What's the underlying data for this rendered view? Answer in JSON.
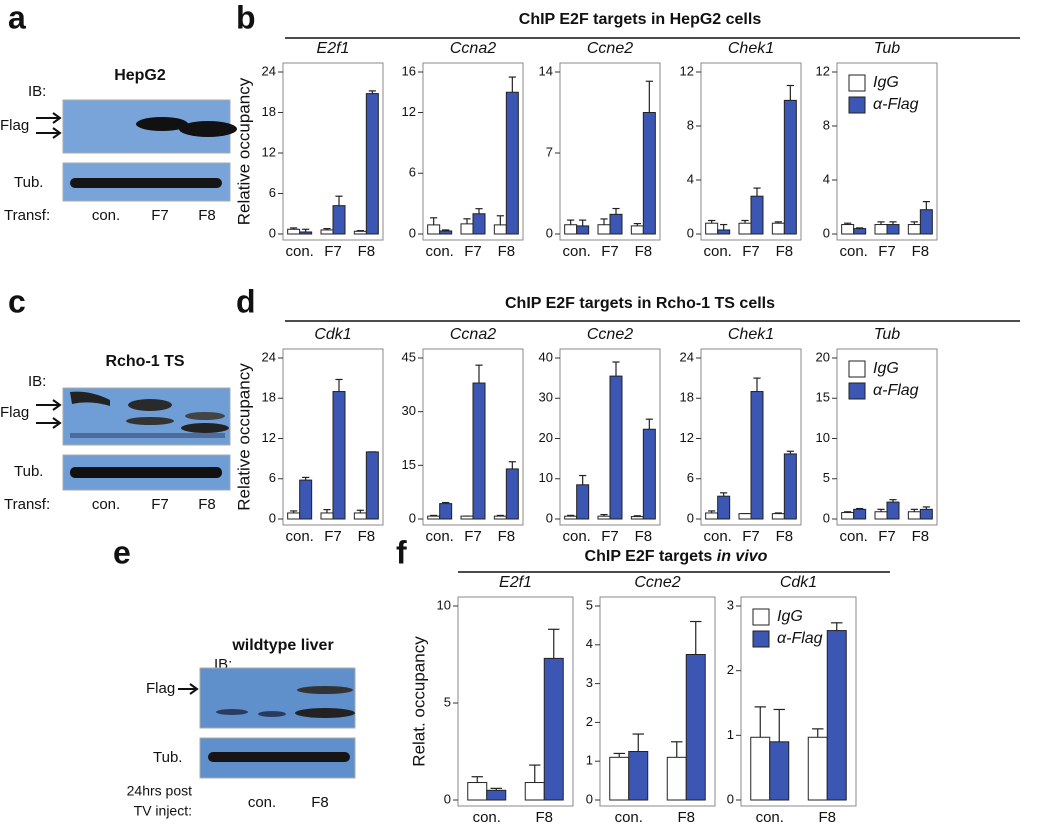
{
  "panel_labels": [
    "a",
    "b",
    "c",
    "d",
    "e",
    "f"
  ],
  "groups": [
    {
      "heading": "ChIP E2F targets in HepG2 cells"
    },
    {
      "heading": "ChIP E2F targets in Rcho-1 TS cells"
    },
    {
      "heading": "ChIP E2F targets",
      "heading_italic": "in vivo"
    }
  ],
  "blots": [
    {
      "title": "HepG2",
      "ib": "IB:",
      "flag": "Flag",
      "tub": "Tub.",
      "transf": [
        "Transf:"
      ],
      "lanes": [
        "con.",
        "F7",
        "F8"
      ]
    },
    {
      "title": "Rcho-1 TS",
      "ib": "IB:",
      "flag": "Flag",
      "tub": "Tub.",
      "transf": [
        "Transf:"
      ],
      "lanes": [
        "con.",
        "F7",
        "F8"
      ]
    },
    {
      "title": "wildtype liver",
      "ib": "IB:",
      "flag": "Flag",
      "tub": "Tub.",
      "transf": [
        "24hrs post",
        "TV inject:"
      ],
      "lanes": [
        "con.",
        "F8"
      ]
    }
  ],
  "chart_data": [
    {
      "type": "bar",
      "title": "E2f1",
      "ylabel": "Relative occupancy",
      "categories": [
        "con.",
        "F7",
        "F8"
      ],
      "ylim": [
        0,
        24
      ],
      "yticks": [
        0,
        6,
        12,
        18,
        24
      ],
      "series": [
        {
          "color": "#ffffff",
          "values": [
            0.7,
            0.6,
            0.4
          ],
          "errors": [
            0.2,
            0.2,
            0.1
          ]
        },
        {
          "color": "#3b56b3",
          "values": [
            0.3,
            4.2,
            20.8
          ],
          "errors": [
            0.4,
            1.4,
            0.4
          ]
        }
      ]
    },
    {
      "type": "bar",
      "title": "Ccna2",
      "categories": [
        "con.",
        "F7",
        "F8"
      ],
      "ylim": [
        0,
        16
      ],
      "yticks": [
        0,
        6,
        12,
        16
      ],
      "series": [
        {
          "color": "#ffffff",
          "values": [
            0.9,
            1.0,
            0.9
          ],
          "errors": [
            0.7,
            0.5,
            0.9
          ]
        },
        {
          "color": "#3b56b3",
          "values": [
            0.3,
            2.0,
            14.0
          ],
          "errors": [
            0.1,
            0.5,
            1.5
          ]
        }
      ]
    },
    {
      "type": "bar",
      "title": "Ccne2",
      "categories": [
        "con.",
        "F7",
        "F8"
      ],
      "ylim": [
        0,
        14
      ],
      "yticks": [
        0,
        7,
        14
      ],
      "series": [
        {
          "color": "#ffffff",
          "values": [
            0.8,
            0.8,
            0.7
          ],
          "errors": [
            0.4,
            0.5,
            0.2
          ]
        },
        {
          "color": "#3b56b3",
          "values": [
            0.7,
            1.7,
            10.5
          ],
          "errors": [
            0.5,
            0.5,
            2.7
          ]
        }
      ]
    },
    {
      "type": "bar",
      "title": "Chek1",
      "categories": [
        "con.",
        "F7",
        "F8"
      ],
      "ylim": [
        0,
        12
      ],
      "yticks": [
        0,
        4,
        8,
        12
      ],
      "series": [
        {
          "color": "#ffffff",
          "values": [
            0.8,
            0.8,
            0.8
          ],
          "errors": [
            0.2,
            0.2,
            0.1
          ]
        },
        {
          "color": "#3b56b3",
          "values": [
            0.3,
            2.8,
            9.9
          ],
          "errors": [
            0.4,
            0.6,
            1.1
          ]
        }
      ]
    },
    {
      "type": "bar",
      "title": "Tub",
      "categories": [
        "con.",
        "F7",
        "F8"
      ],
      "ylim": [
        0,
        12
      ],
      "yticks": [
        0,
        4,
        8,
        12
      ],
      "legend": "upper left",
      "series": [
        {
          "name": "IgG",
          "color": "#ffffff",
          "values": [
            0.7,
            0.7,
            0.7
          ],
          "errors": [
            0.1,
            0.2,
            0.2
          ]
        },
        {
          "name": "α-Flag",
          "color": "#3b56b3",
          "values": [
            0.4,
            0.7,
            1.8
          ],
          "errors": [
            0.05,
            0.2,
            0.6
          ]
        }
      ]
    },
    {
      "type": "bar",
      "title": "Cdk1",
      "ylabel": "Relative occupancy",
      "categories": [
        "con.",
        "F7",
        "F8"
      ],
      "ylim": [
        0,
        24
      ],
      "yticks": [
        0,
        6,
        12,
        18,
        24
      ],
      "series": [
        {
          "color": "#ffffff",
          "values": [
            0.9,
            0.9,
            0.9
          ],
          "errors": [
            0.3,
            0.5,
            0.4
          ]
        },
        {
          "color": "#3b56b3",
          "values": [
            5.8,
            19.0,
            10.0
          ],
          "errors": [
            0.4,
            1.8,
            0
          ]
        }
      ]
    },
    {
      "type": "bar",
      "title": "Ccna2",
      "categories": [
        "con.",
        "F7",
        "F8"
      ],
      "ylim": [
        0,
        45
      ],
      "yticks": [
        0,
        15,
        30,
        45
      ],
      "series": [
        {
          "color": "#ffffff",
          "values": [
            0.8,
            0.8,
            0.8
          ],
          "errors": [
            0.2,
            0,
            0.2
          ]
        },
        {
          "color": "#3b56b3",
          "values": [
            4.3,
            38.0,
            14.0
          ],
          "errors": [
            0.3,
            5.0,
            2.0
          ]
        }
      ]
    },
    {
      "type": "bar",
      "title": "Ccne2",
      "categories": [
        "con.",
        "F7",
        "F8"
      ],
      "ylim": [
        0,
        40
      ],
      "yticks": [
        0,
        10,
        20,
        30,
        40
      ],
      "series": [
        {
          "color": "#ffffff",
          "values": [
            0.7,
            0.7,
            0.6
          ],
          "errors": [
            0.2,
            0.4,
            0.2
          ]
        },
        {
          "color": "#3b56b3",
          "values": [
            8.5,
            35.5,
            22.3
          ],
          "errors": [
            2.3,
            3.5,
            2.5
          ]
        }
      ]
    },
    {
      "type": "bar",
      "title": "Chek1",
      "categories": [
        "con.",
        "F7",
        "F8"
      ],
      "ylim": [
        0,
        24
      ],
      "yticks": [
        0,
        6,
        12,
        18,
        24
      ],
      "series": [
        {
          "color": "#ffffff",
          "values": [
            0.9,
            0.8,
            0.8
          ],
          "errors": [
            0.3,
            0,
            0.1
          ]
        },
        {
          "color": "#3b56b3",
          "values": [
            3.4,
            19.0,
            9.7
          ],
          "errors": [
            0.5,
            2.0,
            0.4
          ]
        }
      ]
    },
    {
      "type": "bar",
      "title": "Tub",
      "categories": [
        "con.",
        "F7",
        "F8"
      ],
      "ylim": [
        0,
        20
      ],
      "yticks": [
        0,
        5,
        10,
        15,
        20
      ],
      "legend": "upper left",
      "series": [
        {
          "name": "IgG",
          "color": "#ffffff",
          "values": [
            0.8,
            0.9,
            0.9
          ],
          "errors": [
            0.1,
            0.3,
            0.3
          ]
        },
        {
          "name": "α-Flag",
          "color": "#3b56b3",
          "values": [
            1.2,
            2.1,
            1.2
          ],
          "errors": [
            0.1,
            0.3,
            0.3
          ]
        }
      ]
    },
    {
      "type": "bar",
      "title": "E2f1",
      "ylabel": "Relat. occupancy",
      "categories": [
        "con.",
        "F8"
      ],
      "ylim": [
        0,
        10
      ],
      "yticks": [
        0,
        5,
        10
      ],
      "series": [
        {
          "color": "#ffffff",
          "values": [
            0.9,
            0.9
          ],
          "errors": [
            0.3,
            0.9
          ]
        },
        {
          "color": "#3b56b3",
          "values": [
            0.5,
            7.3
          ],
          "errors": [
            0.1,
            1.5
          ]
        }
      ]
    },
    {
      "type": "bar",
      "title": "Ccne2",
      "categories": [
        "con.",
        "F8"
      ],
      "ylim": [
        0,
        5
      ],
      "yticks": [
        0,
        1,
        2,
        3,
        4,
        5
      ],
      "series": [
        {
          "color": "#ffffff",
          "values": [
            1.1,
            1.1
          ],
          "errors": [
            0.1,
            0.4
          ]
        },
        {
          "color": "#3b56b3",
          "values": [
            1.25,
            3.75
          ],
          "errors": [
            0.45,
            0.85
          ]
        }
      ]
    },
    {
      "type": "bar",
      "title": "Cdk1",
      "categories": [
        "con.",
        "F8"
      ],
      "ylim": [
        0,
        3
      ],
      "yticks": [
        0,
        1,
        2,
        3
      ],
      "legend": "upper left",
      "series": [
        {
          "name": "IgG",
          "color": "#ffffff",
          "values": [
            0.97,
            0.97
          ],
          "errors": [
            0.47,
            0.13
          ]
        },
        {
          "name": "α-Flag",
          "color": "#3b56b3",
          "values": [
            0.9,
            2.62
          ],
          "errors": [
            0.5,
            0.12
          ]
        }
      ]
    }
  ]
}
